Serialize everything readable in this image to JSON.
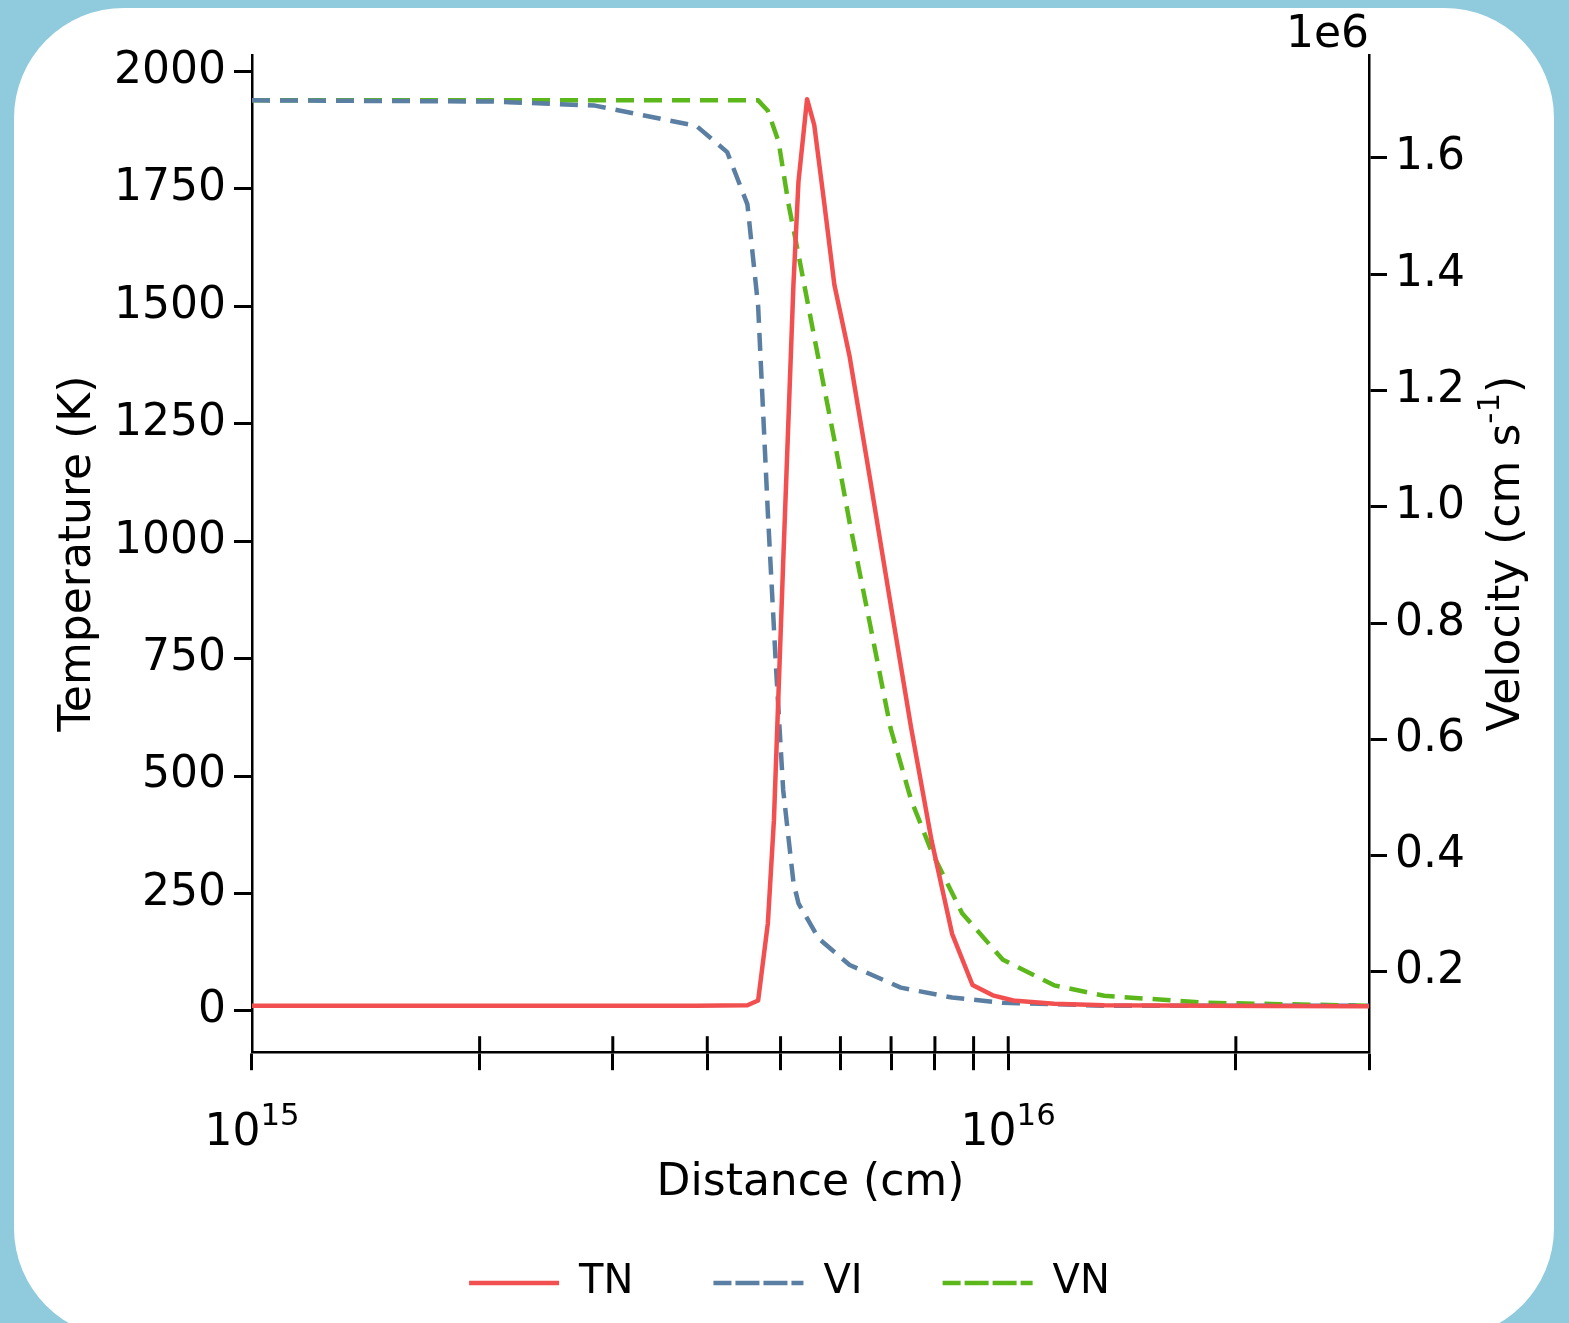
{
  "chart_data": {
    "type": "line",
    "xlabel": "Distance (cm)",
    "ylabel": "Temperature (K)",
    "y2label": "Velocity (cm s$^{-1}$)",
    "log": "x",
    "grid": false,
    "legend": "bottom",
    "marker": "none",
    "xlim": [
      1000000000000000.0,
      3e+16
    ],
    "xticks": [
      {
        "value": 1000000000000000.0,
        "label": "10$^{15}$"
      },
      {
        "value": 2000000000000000.0,
        "label": null
      },
      {
        "value": 3000000000000000.0,
        "label": null
      },
      {
        "value": 4000000000000000.0,
        "label": null
      },
      {
        "value": 5000000000000000.0,
        "label": null
      },
      {
        "value": 6000000000000000.0,
        "label": null
      },
      {
        "value": 7000000000000000.0,
        "label": null
      },
      {
        "value": 8000000000000000.0,
        "label": null
      },
      {
        "value": 9000000000000000.0,
        "label": null
      },
      {
        "value": 1e+16,
        "label": "10$^{16}$"
      },
      {
        "value": 2e+16,
        "label": null
      },
      {
        "value": 3e+16,
        "label": null
      }
    ],
    "ylim": [
      -88,
      2035
    ],
    "yticks": [
      0,
      250,
      500,
      750,
      1000,
      1250,
      1500,
      1750,
      2000
    ],
    "y2lim": [
      0.062,
      1.777
    ],
    "y2ticks": [
      0.2,
      0.4,
      0.6,
      0.8,
      {
        "value": 1.0,
        "label": "1.0"
      },
      1.2,
      1.4,
      1.6
    ],
    "annotations": [
      "1e6"
    ],
    "series": [
      {
        "name": "TN",
        "color": "#f25050",
        "line_style": "solid",
        "x": [
          1000000000000000.0,
          2080000000000000.0,
          3870000000000000.0,
          4520000000000000.0,
          4670000000000000.0,
          4810000000000000.0,
          4900000000000000.0,
          5040000000000000.0,
          5200000000000000.0,
          5280000000000000.0,
          5420000000000000.0,
          5540000000000000.0,
          5710000000000000.0,
          5890000000000000.0,
          6170000000000000.0,
          6570000000000000.0,
          6990000000000000.0,
          7440000000000000.0,
          7920000000000000.0,
          8430000000000000.0,
          8970000000000000.0,
          9540000000000000.0,
          1.016e+16,
          1.15e+16,
          1.34e+16,
          1.83e+16,
          3e+16
        ],
        "values": [
          11,
          11,
          11,
          12,
          22,
          186,
          406,
          954,
          1546,
          1765,
          1941,
          1886,
          1721,
          1546,
          1393,
          1130,
          866,
          603,
          362,
          164,
          55,
          33,
          22,
          15,
          12,
          11,
          10
        ]
      },
      {
        "name": "VI",
        "color": "#5a7fa3",
        "line_style": "dashed",
        "axis": "y2",
        "x": [
          1000000000000000.0,
          2080000000000000.0,
          2840000000000000.0,
          3870000000000000.0,
          4250000000000000.0,
          4520000000000000.0,
          4670000000000000.0,
          4810000000000000.0,
          4930000000000000.0,
          5040000000000000.0,
          5200000000000000.0,
          5280000000000000.0,
          5620000000000000.0,
          6170000000000000.0,
          7210000000000000.0,
          8430000000000000.0,
          9840000000000000.0,
          1.34e+16,
          3e+16
        ],
        "values": [
          1.699,
          1.697,
          1.69,
          1.655,
          1.61,
          1.52,
          1.345,
          0.99,
          0.726,
          0.513,
          0.354,
          0.318,
          0.257,
          0.212,
          0.173,
          0.156,
          0.147,
          0.142,
          0.142
        ]
      },
      {
        "name": "VN",
        "color": "#5cb81a",
        "line_style": "dashed",
        "axis": "y2",
        "x": [
          1000000000000000.0,
          2080000000000000.0,
          3870000000000000.0,
          4670000000000000.0,
          4810000000000000.0,
          4970000000000000.0,
          5120000000000000.0,
          5280000000000000.0,
          5540000000000000.0,
          5890000000000000.0,
          6170000000000000.0,
          6570000000000000.0,
          6990000000000000.0,
          7440000000000000.0,
          7920000000000000.0,
          8690000000000000.0,
          9840000000000000.0,
          1.15e+16,
          1.34e+16,
          1.83e+16,
          3e+16
        ],
        "values": [
          1.699,
          1.699,
          1.699,
          1.699,
          1.681,
          1.628,
          1.522,
          1.434,
          1.292,
          1.115,
          0.973,
          0.796,
          0.619,
          0.496,
          0.407,
          0.301,
          0.221,
          0.177,
          0.159,
          0.147,
          0.142
        ]
      }
    ]
  }
}
